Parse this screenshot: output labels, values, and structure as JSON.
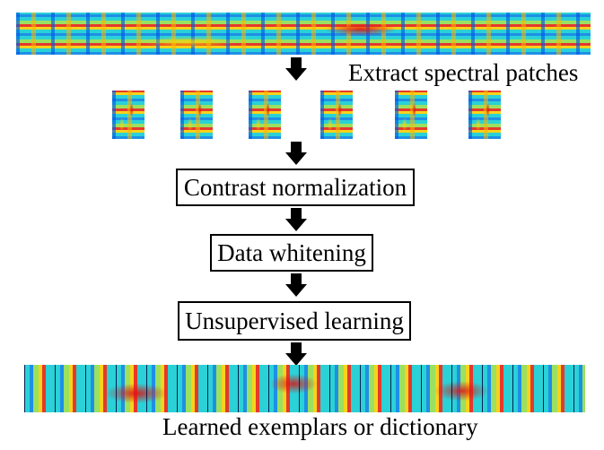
{
  "title": "",
  "input_spectrogram": {
    "icon": "spectrogram-image"
  },
  "extract_label": "Extract spectral patches",
  "patches": [
    {
      "icon": "spectral-patch-image"
    },
    {
      "icon": "spectral-patch-image"
    },
    {
      "icon": "spectral-patch-image"
    },
    {
      "icon": "spectral-patch-image"
    },
    {
      "icon": "spectral-patch-image"
    },
    {
      "icon": "spectral-patch-image"
    }
  ],
  "steps": [
    {
      "label": "Contrast normalization"
    },
    {
      "label": "Data whitening"
    },
    {
      "label": "Unsupervised learning"
    }
  ],
  "output_label": "Learned exemplars or dictionary",
  "colors": {
    "arrow": "#000000",
    "box_border": "#000000",
    "background": "#ffffff"
  }
}
